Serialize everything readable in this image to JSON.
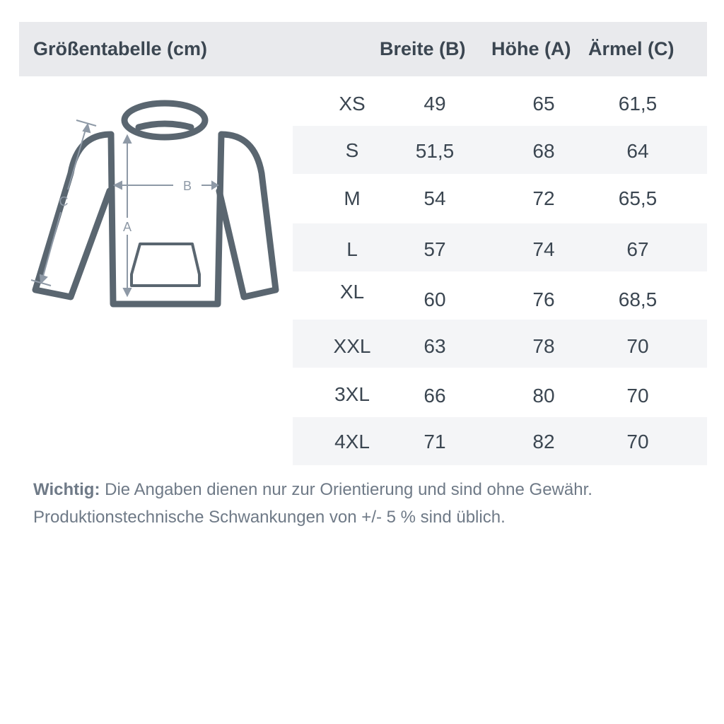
{
  "header": {
    "title": "Größentabelle (cm)",
    "columns": [
      "Breite (B)",
      "Höhe (A)",
      "Ärmel (C)"
    ]
  },
  "diagram": {
    "labels": {
      "a": "A",
      "b": "B",
      "c": "C"
    },
    "outline_color": "#5a6670",
    "arrow_color": "#8e99a6"
  },
  "rows": [
    {
      "size": "XS",
      "breite": "49",
      "hoehe": "65",
      "aermel": "61,5"
    },
    {
      "size": "S",
      "breite": "51,5",
      "hoehe": "68",
      "aermel": "64"
    },
    {
      "size": "M",
      "breite": "54",
      "hoehe": "72",
      "aermel": "65,5"
    },
    {
      "size": "L",
      "breite": "57",
      "hoehe": "74",
      "aermel": "67"
    },
    {
      "size": "XL",
      "breite": "60",
      "hoehe": "76",
      "aermel": "68,5"
    },
    {
      "size": "XXL",
      "breite": "63",
      "hoehe": "78",
      "aermel": "70"
    },
    {
      "size": "3XL",
      "breite": "66",
      "hoehe": "80",
      "aermel": "70"
    },
    {
      "size": "4XL",
      "breite": "71",
      "hoehe": "82",
      "aermel": "70"
    }
  ],
  "note": {
    "label": "Wichtig:",
    "line1": "Die Angaben dienen nur zur Orientierung und sind ohne Gewähr.",
    "line2": "Produktionstechnische Schwankungen von +/- 5 % sind üblich."
  }
}
